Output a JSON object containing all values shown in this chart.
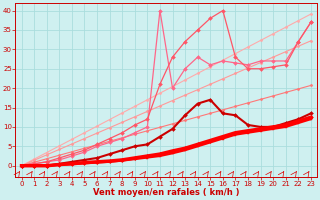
{
  "xlabel": "Vent moyen/en rafales ( km/h )",
  "background_color": "#cff0f0",
  "grid_color": "#aadddd",
  "x_values": [
    0,
    1,
    2,
    3,
    4,
    5,
    6,
    7,
    8,
    9,
    10,
    11,
    12,
    13,
    14,
    15,
    16,
    17,
    18,
    19,
    20,
    21,
    22,
    23
  ],
  "series": [
    {
      "color": "#ffaaaa",
      "linewidth": 0.8,
      "marker": "D",
      "markersize": 1.5,
      "values": [
        0,
        1.7,
        3.4,
        5.1,
        6.8,
        8.5,
        10.2,
        11.9,
        13.6,
        15.3,
        17.0,
        18.7,
        20.4,
        22.1,
        23.8,
        25.5,
        27.2,
        28.9,
        30.6,
        32.3,
        34.0,
        35.7,
        37.4,
        39.1
      ]
    },
    {
      "color": "#ff9999",
      "linewidth": 0.8,
      "marker": "D",
      "markersize": 1.5,
      "values": [
        0,
        1.4,
        2.8,
        4.2,
        5.6,
        7.0,
        8.4,
        9.8,
        11.2,
        12.6,
        14.0,
        15.4,
        16.8,
        18.2,
        19.6,
        21.0,
        22.4,
        23.8,
        25.2,
        26.6,
        28.0,
        29.4,
        30.8,
        32.2
      ]
    },
    {
      "color": "#ff7777",
      "linewidth": 0.8,
      "marker": "D",
      "markersize": 1.5,
      "values": [
        0,
        0.9,
        1.8,
        2.7,
        3.6,
        4.5,
        5.4,
        6.3,
        7.2,
        8.1,
        9.0,
        9.9,
        10.8,
        11.7,
        12.6,
        13.5,
        14.4,
        15.3,
        16.2,
        17.1,
        18.0,
        18.9,
        19.8,
        20.7
      ]
    },
    {
      "color": "#ff6688",
      "linewidth": 0.9,
      "marker": "D",
      "markersize": 2,
      "values": [
        0,
        0.5,
        1.0,
        1.5,
        2.5,
        3.5,
        5.0,
        6.0,
        7.0,
        8.5,
        10.0,
        40.0,
        20.0,
        25.0,
        28.0,
        26.0,
        27.0,
        26.5,
        26.0,
        27.0,
        27.0,
        27.0,
        32.0,
        37.0
      ]
    },
    {
      "color": "#ff5566",
      "linewidth": 0.9,
      "marker": "D",
      "markersize": 2,
      "values": [
        0,
        0.5,
        1.0,
        2.0,
        3.0,
        4.0,
        5.5,
        7.0,
        8.5,
        10.5,
        12.0,
        21.0,
        28.0,
        32.0,
        35.0,
        38.0,
        40.0,
        28.0,
        25.0,
        25.0,
        25.5,
        26.0,
        32.0,
        37.0
      ]
    },
    {
      "color": "#cc0000",
      "linewidth": 1.5,
      "marker": "D",
      "markersize": 2,
      "values": [
        0,
        0,
        0,
        0.5,
        1.0,
        1.5,
        2.0,
        3.0,
        4.0,
        5.0,
        5.5,
        7.5,
        9.5,
        13.0,
        16.0,
        17.0,
        13.5,
        13.0,
        10.5,
        10.0,
        10.0,
        11.0,
        12.0,
        13.5
      ]
    },
    {
      "color": "#ff0000",
      "linewidth": 2.5,
      "marker": "D",
      "markersize": 2,
      "values": [
        0,
        0,
        0,
        0.3,
        0.5,
        0.8,
        1.0,
        1.2,
        1.5,
        2.0,
        2.5,
        3.0,
        3.8,
        4.5,
        5.5,
        6.5,
        7.5,
        8.5,
        9.0,
        9.5,
        10.0,
        10.5,
        11.5,
        12.5
      ]
    },
    {
      "color": "#ff0000",
      "linewidth": 1.5,
      "marker": "s",
      "markersize": 2,
      "values": [
        0,
        0,
        0,
        0.2,
        0.4,
        0.6,
        0.8,
        1.0,
        1.3,
        1.7,
        2.1,
        2.5,
        3.2,
        4.0,
        5.0,
        6.0,
        7.0,
        8.0,
        8.5,
        9.0,
        9.5,
        10.0,
        11.0,
        12.0
      ]
    }
  ],
  "wind_arrows": {
    "color": "#dd0000"
  },
  "ylim": [
    -3,
    42
  ],
  "xlim": [
    -0.5,
    23.5
  ],
  "yticks": [
    0,
    5,
    10,
    15,
    20,
    25,
    30,
    35,
    40
  ],
  "xticks": [
    0,
    1,
    2,
    3,
    4,
    5,
    6,
    7,
    8,
    9,
    10,
    11,
    12,
    13,
    14,
    15,
    16,
    17,
    18,
    19,
    20,
    21,
    22,
    23
  ],
  "tick_color": "#cc0000",
  "axis_color": "#cc0000",
  "label_color": "#cc0000",
  "label_fontsize": 6,
  "tick_fontsize": 5
}
